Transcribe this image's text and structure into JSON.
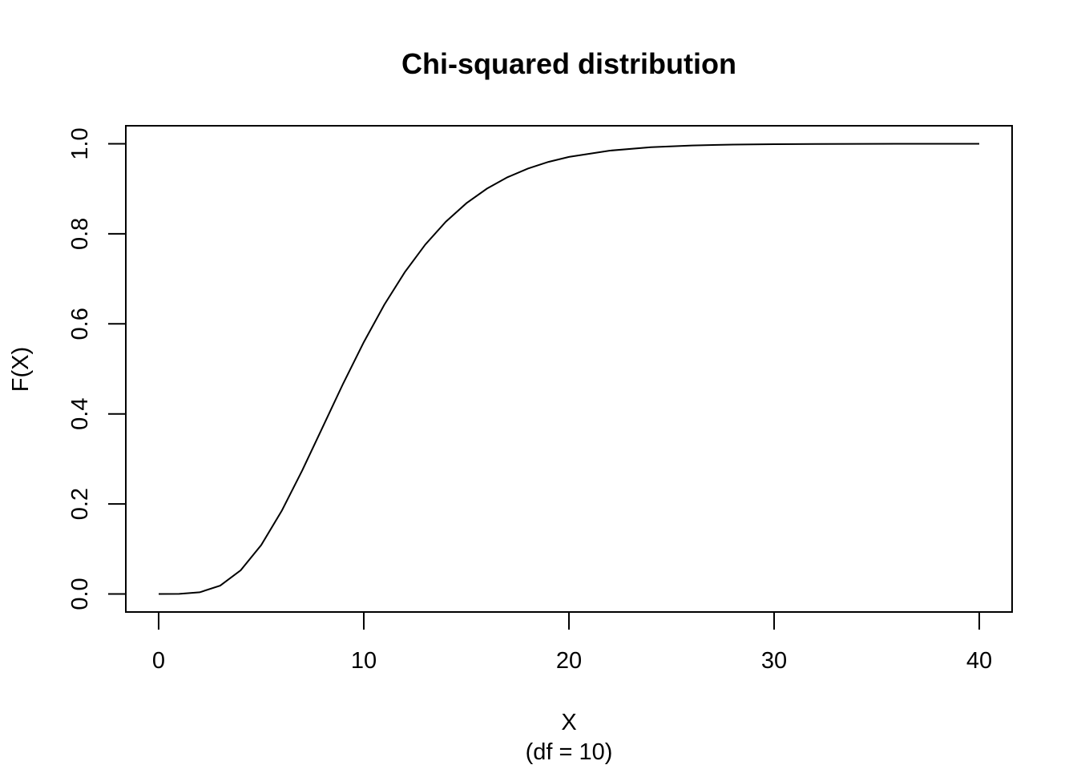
{
  "chart_data": {
    "type": "line",
    "title": "Chi-squared distribution",
    "xlabel": "X",
    "sublabel": "(df = 10)",
    "ylabel": "F(X)",
    "xlim": [
      -1.6,
      41.6
    ],
    "ylim": [
      -0.04,
      1.04
    ],
    "x_ticks": [
      0,
      10,
      20,
      30,
      40
    ],
    "y_ticks": [
      0.0,
      0.2,
      0.4,
      0.6,
      0.8,
      1.0
    ],
    "x_tick_labels": [
      "0",
      "10",
      "20",
      "30",
      "40"
    ],
    "y_tick_labels": [
      "0.0",
      "0.2",
      "0.4",
      "0.6",
      "0.8",
      "1.0"
    ],
    "grid": false,
    "series": [
      {
        "x": [
          0,
          1,
          2,
          3,
          4,
          5,
          6,
          7,
          8,
          9,
          10,
          11,
          12,
          13,
          14,
          15,
          16,
          17,
          18,
          19,
          20,
          22,
          24,
          26,
          28,
          30,
          32,
          34,
          36,
          38,
          40
        ],
        "values": [
          0,
          0.0002,
          0.0037,
          0.0186,
          0.0527,
          0.1088,
          0.1847,
          0.2746,
          0.3712,
          0.4679,
          0.5595,
          0.6425,
          0.7149,
          0.7763,
          0.827,
          0.8679,
          0.9004,
          0.9256,
          0.945,
          0.9597,
          0.9707,
          0.9849,
          0.9924,
          0.9963,
          0.9982,
          0.9991,
          0.9996,
          0.9998,
          0.9999,
          1.0,
          1.0
        ]
      }
    ]
  }
}
